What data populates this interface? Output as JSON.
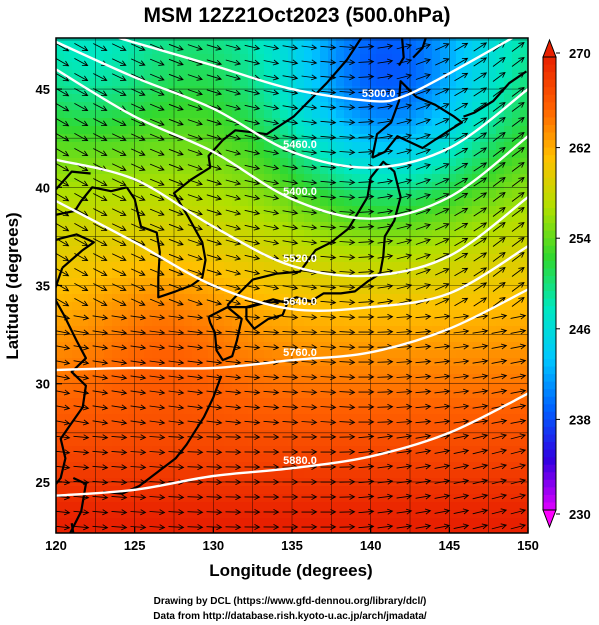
{
  "title": "MSM 12Z21Oct2023 (500.0hPa)",
  "footer": {
    "line1": "Drawing by DCL (https://www.gfd-dennou.org/library/dcl/)",
    "line2": "Data from http://database.rish.kyoto-u.ac.jp/arch/jmadata/"
  },
  "chart_data": {
    "type": "heatmap",
    "title": "MSM 12Z21Oct2023 (500.0hPa)",
    "xlabel": "Longitude (degrees)",
    "ylabel": "Latitude  (degrees)",
    "xlim": [
      120,
      150
    ],
    "ylim": [
      22.4,
      47.6
    ],
    "xticks": [
      "120",
      "125",
      "130",
      "135",
      "140",
      "145",
      "150"
    ],
    "yticks": [
      "25",
      "30",
      "35",
      "40",
      "45"
    ],
    "grid": true,
    "colorbar": {
      "min": 230,
      "max": 270,
      "ticks": [
        "270",
        "262",
        "254",
        "246",
        "238",
        "230"
      ],
      "extend": "both",
      "colors": [
        "#e000ff",
        "#3000e0",
        "#0060ff",
        "#00c8ff",
        "#00e8c0",
        "#30d830",
        "#b0e000",
        "#ffc000",
        "#ff6000",
        "#e82000"
      ]
    },
    "contours": [
      {
        "label": "5880.0",
        "lat_at_lon": [
          [
            120,
            24.3
          ],
          [
            125,
            24.6
          ],
          [
            130,
            25.3
          ],
          [
            135,
            25.7
          ],
          [
            140,
            26.3
          ],
          [
            145,
            27.5
          ],
          [
            150,
            29.5
          ]
        ]
      },
      {
        "label": "5760.0",
        "lat_at_lon": [
          [
            120,
            30.7
          ],
          [
            125,
            30.8
          ],
          [
            130,
            30.8
          ],
          [
            135,
            31.2
          ],
          [
            140,
            31.6
          ],
          [
            145,
            32.8
          ],
          [
            150,
            34.8
          ]
        ]
      },
      {
        "label": "5640.0",
        "lat_at_lon": [
          [
            120,
            39.3
          ],
          [
            125,
            37.2
          ],
          [
            130,
            35.0
          ],
          [
            135,
            33.8
          ],
          [
            140,
            33.9
          ],
          [
            145,
            34.6
          ],
          [
            150,
            37.0
          ]
        ]
      },
      {
        "label": "5520.0",
        "lat_at_lon": [
          [
            120,
            41.4
          ],
          [
            125,
            40.4
          ],
          [
            130,
            38.0
          ],
          [
            135,
            36.0
          ],
          [
            140,
            35.5
          ],
          [
            145,
            36.5
          ],
          [
            150,
            39.5
          ]
        ]
      },
      {
        "label": "5400.0",
        "lat_at_lon": [
          [
            120,
            46.0
          ],
          [
            125,
            43.6
          ],
          [
            130,
            41.8
          ],
          [
            135,
            39.4
          ],
          [
            140,
            38.4
          ],
          [
            145,
            39.5
          ],
          [
            150,
            42.6
          ]
        ]
      },
      {
        "label": "5460.0",
        "lat_at_lon": [
          [
            120,
            47.4
          ],
          [
            125,
            45.6
          ],
          [
            130,
            44.0
          ],
          [
            135,
            41.8
          ],
          [
            140,
            41.0
          ],
          [
            145,
            42.0
          ],
          [
            150,
            45.0
          ]
        ]
      },
      {
        "label": "5300.0",
        "lat_at_lon": [
          [
            124,
            47.6
          ],
          [
            130,
            46.2
          ],
          [
            135,
            45.0
          ],
          [
            140,
            44.4
          ],
          [
            142,
            44.6
          ],
          [
            145,
            45.8
          ],
          [
            149,
            47.6
          ]
        ]
      }
    ],
    "wind": "streamline vectors mostly westerly, curving southeast then northeast around a trough near 140E"
  }
}
